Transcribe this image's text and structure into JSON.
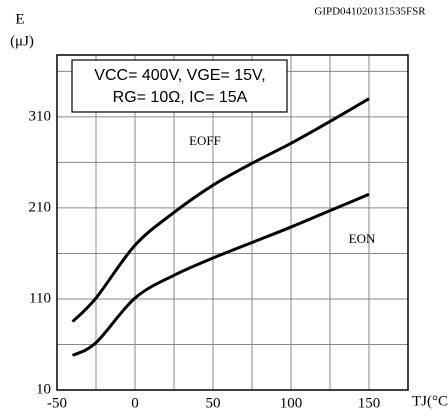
{
  "chart_data": {
    "type": "line",
    "code": "GIPD041020131535FSR",
    "y_label": "E",
    "y_unit": "(μJ)",
    "x_label": "TJ(°C)",
    "annotation": [
      "VCC= 400V, VGE= 15V,",
      "RG= 10Ω, IC= 15A"
    ],
    "x": [
      -40,
      -25,
      0,
      25,
      50,
      75,
      100,
      125,
      150
    ],
    "series": [
      {
        "name": "EOFF",
        "color": "#000000",
        "values": [
          85,
          111,
          169,
          205,
          235,
          259,
          281,
          305,
          330
        ]
      },
      {
        "name": "EON",
        "color": "#000000",
        "values": [
          48,
          62,
          111,
          136,
          155,
          172,
          189,
          207,
          225
        ]
      }
    ],
    "xlim": [
      -50,
      175
    ],
    "xticks": [
      -50,
      0,
      50,
      100,
      150
    ],
    "x_minor": [
      -25,
      25,
      75,
      125
    ],
    "ylim": [
      10,
      378
    ],
    "yticks": [
      10,
      110,
      210,
      310
    ],
    "y_minor": [
      60,
      160,
      260,
      360
    ],
    "grid": true
  }
}
